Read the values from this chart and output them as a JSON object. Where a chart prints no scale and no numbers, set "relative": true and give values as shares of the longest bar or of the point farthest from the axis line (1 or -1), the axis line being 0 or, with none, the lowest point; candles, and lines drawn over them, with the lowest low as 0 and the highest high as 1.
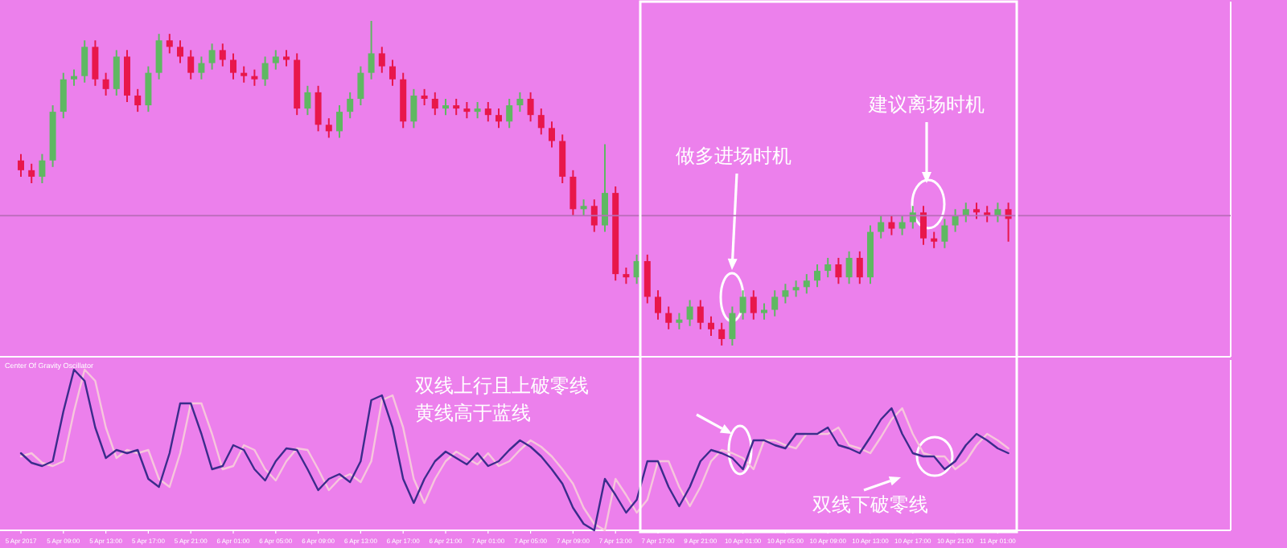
{
  "chart_data": [
    {
      "type": "candlestick",
      "relative": true,
      "categories": [
        null,
        null,
        null,
        null,
        null,
        null,
        null,
        null,
        null,
        null,
        null,
        null,
        null,
        null,
        null,
        null,
        null,
        null,
        null,
        null,
        null,
        null,
        null,
        null,
        null,
        null,
        null,
        null,
        null,
        null,
        null,
        null,
        null,
        null,
        null,
        null,
        null,
        null,
        null,
        null,
        null,
        null,
        null,
        null,
        null,
        null,
        null,
        null,
        null,
        null,
        null,
        null,
        null,
        null,
        null,
        null,
        null,
        null,
        null,
        null,
        null,
        null,
        null,
        null,
        null,
        null,
        null,
        null,
        null,
        null,
        null,
        null,
        null,
        null,
        null,
        null,
        null,
        null,
        null,
        null,
        null,
        null,
        null,
        null,
        null,
        null,
        null,
        null,
        null,
        null,
        null,
        null,
        null,
        null
      ],
      "ohlc": [
        [
          0.57,
          0.59,
          0.52,
          0.54
        ],
        [
          0.54,
          0.56,
          0.5,
          0.52
        ],
        [
          0.52,
          0.59,
          0.5,
          0.57
        ],
        [
          0.57,
          0.74,
          0.55,
          0.72
        ],
        [
          0.72,
          0.84,
          0.7,
          0.82
        ],
        [
          0.82,
          0.85,
          0.8,
          0.83
        ],
        [
          0.83,
          0.94,
          0.81,
          0.92
        ],
        [
          0.92,
          0.94,
          0.8,
          0.82
        ],
        [
          0.82,
          0.84,
          0.77,
          0.79
        ],
        [
          0.79,
          0.91,
          0.77,
          0.89
        ],
        [
          0.89,
          0.91,
          0.75,
          0.77
        ],
        [
          0.77,
          0.79,
          0.72,
          0.74
        ],
        [
          0.74,
          0.86,
          0.72,
          0.84
        ],
        [
          0.84,
          0.96,
          0.82,
          0.94
        ],
        [
          0.94,
          0.96,
          0.9,
          0.92
        ],
        [
          0.92,
          0.94,
          0.87,
          0.89
        ],
        [
          0.89,
          0.91,
          0.82,
          0.84
        ],
        [
          0.84,
          0.89,
          0.82,
          0.87
        ],
        [
          0.87,
          0.93,
          0.85,
          0.91
        ],
        [
          0.91,
          0.93,
          0.86,
          0.88
        ],
        [
          0.88,
          0.9,
          0.82,
          0.84
        ],
        [
          0.84,
          0.86,
          0.81,
          0.83
        ],
        [
          0.83,
          0.85,
          0.8,
          0.82
        ],
        [
          0.82,
          0.89,
          0.8,
          0.87
        ],
        [
          0.87,
          0.91,
          0.85,
          0.89
        ],
        [
          0.89,
          0.91,
          0.86,
          0.88
        ],
        [
          0.88,
          0.9,
          0.71,
          0.73
        ],
        [
          0.73,
          0.8,
          0.71,
          0.78
        ],
        [
          0.78,
          0.8,
          0.66,
          0.68
        ],
        [
          0.68,
          0.7,
          0.64,
          0.66
        ],
        [
          0.66,
          0.74,
          0.64,
          0.72
        ],
        [
          0.72,
          0.78,
          0.7,
          0.76
        ],
        [
          0.76,
          0.86,
          0.74,
          0.84
        ],
        [
          0.84,
          1.0,
          0.82,
          0.9
        ],
        [
          0.9,
          0.92,
          0.84,
          0.86
        ],
        [
          0.86,
          0.88,
          0.8,
          0.82
        ],
        [
          0.82,
          0.84,
          0.67,
          0.69
        ],
        [
          0.69,
          0.79,
          0.67,
          0.77
        ],
        [
          0.77,
          0.79,
          0.74,
          0.76
        ],
        [
          0.76,
          0.78,
          0.71,
          0.73
        ],
        [
          0.73,
          0.76,
          0.71,
          0.74
        ],
        [
          0.74,
          0.76,
          0.71,
          0.73
        ],
        [
          0.73,
          0.75,
          0.7,
          0.72
        ],
        [
          0.72,
          0.75,
          0.7,
          0.73
        ],
        [
          0.73,
          0.75,
          0.69,
          0.71
        ],
        [
          0.71,
          0.73,
          0.67,
          0.69
        ],
        [
          0.69,
          0.76,
          0.67,
          0.74
        ],
        [
          0.74,
          0.78,
          0.72,
          0.76
        ],
        [
          0.76,
          0.78,
          0.69,
          0.71
        ],
        [
          0.71,
          0.73,
          0.65,
          0.67
        ],
        [
          0.67,
          0.69,
          0.61,
          0.63
        ],
        [
          0.63,
          0.65,
          0.5,
          0.52
        ],
        [
          0.52,
          0.54,
          0.4,
          0.42
        ],
        [
          0.42,
          0.45,
          0.4,
          0.43
        ],
        [
          0.43,
          0.45,
          0.35,
          0.37
        ],
        [
          0.37,
          0.62,
          0.35,
          0.47
        ],
        [
          0.47,
          0.49,
          0.2,
          0.22
        ],
        [
          0.22,
          0.24,
          0.19,
          0.21
        ],
        [
          0.21,
          0.28,
          0.19,
          0.26
        ],
        [
          0.26,
          0.28,
          0.13,
          0.15
        ],
        [
          0.15,
          0.17,
          0.08,
          0.1
        ],
        [
          0.1,
          0.12,
          0.05,
          0.07
        ],
        [
          0.07,
          0.1,
          0.05,
          0.08
        ],
        [
          0.08,
          0.14,
          0.06,
          0.12
        ],
        [
          0.12,
          0.14,
          0.05,
          0.07
        ],
        [
          0.07,
          0.09,
          0.03,
          0.05
        ],
        [
          0.05,
          0.07,
          0.0,
          0.02
        ],
        [
          0.02,
          0.12,
          0.0,
          0.1
        ],
        [
          0.1,
          0.17,
          0.08,
          0.15
        ],
        [
          0.15,
          0.17,
          0.08,
          0.1
        ],
        [
          0.1,
          0.13,
          0.08,
          0.11
        ],
        [
          0.11,
          0.17,
          0.09,
          0.15
        ],
        [
          0.15,
          0.19,
          0.13,
          0.17
        ],
        [
          0.17,
          0.2,
          0.15,
          0.18
        ],
        [
          0.18,
          0.22,
          0.16,
          0.2
        ],
        [
          0.2,
          0.25,
          0.18,
          0.23
        ],
        [
          0.23,
          0.27,
          0.21,
          0.25
        ],
        [
          0.25,
          0.27,
          0.19,
          0.21
        ],
        [
          0.21,
          0.29,
          0.19,
          0.27
        ],
        [
          0.27,
          0.29,
          0.19,
          0.21
        ],
        [
          0.21,
          0.37,
          0.19,
          0.35
        ],
        [
          0.35,
          0.4,
          0.33,
          0.38
        ],
        [
          0.38,
          0.4,
          0.34,
          0.36
        ],
        [
          0.36,
          0.4,
          0.34,
          0.38
        ],
        [
          0.38,
          0.43,
          0.36,
          0.41
        ],
        [
          0.41,
          0.43,
          0.31,
          0.33
        ],
        [
          0.33,
          0.35,
          0.3,
          0.32
        ],
        [
          0.32,
          0.39,
          0.3,
          0.37
        ],
        [
          0.37,
          0.42,
          0.35,
          0.4
        ],
        [
          0.4,
          0.44,
          0.38,
          0.42
        ],
        [
          0.42,
          0.44,
          0.39,
          0.41
        ],
        [
          0.41,
          0.43,
          0.38,
          0.4
        ],
        [
          0.4,
          0.44,
          0.38,
          0.42
        ],
        [
          0.42,
          0.44,
          0.32,
          0.39
        ]
      ],
      "ref_lines": [
        {
          "axis": "y",
          "value": 0.4,
          "color": "#b86cb8"
        }
      ],
      "annotations": [
        "做多进场时机",
        "建议离场时机"
      ]
    },
    {
      "type": "line",
      "relative": true,
      "tick_labels": "x",
      "title": "Center Of Gravity Oscillator",
      "categories": [
        "5 Apr 2017",
        null,
        null,
        null,
        "5 Apr 09:00",
        null,
        null,
        null,
        "5 Apr 13:00",
        null,
        null,
        null,
        "5 Apr 17:00",
        null,
        null,
        null,
        "5 Apr 21:00",
        null,
        null,
        null,
        "6 Apr 01:00",
        null,
        null,
        null,
        "6 Apr 05:00",
        null,
        null,
        null,
        "6 Apr 09:00",
        null,
        null,
        null,
        "6 Apr 13:00",
        null,
        null,
        null,
        "6 Apr 17:00",
        null,
        null,
        null,
        "6 Apr 21:00",
        null,
        null,
        null,
        "7 Apr 01:00",
        null,
        null,
        null,
        "7 Apr 05:00",
        null,
        null,
        null,
        "7 Apr 09:00",
        null,
        null,
        null,
        "7 Apr 13:00",
        null,
        null,
        null,
        "7 Apr 17:00",
        null,
        null,
        null,
        "9 Apr 21:00",
        null,
        null,
        null,
        "10 Apr 01:00",
        null,
        null,
        null,
        "10 Apr 05:00",
        null,
        null,
        null,
        "10 Apr 09:00",
        null,
        null,
        null,
        "10 Apr 13:00",
        null,
        null,
        null,
        "10 Apr 17:00",
        null,
        null,
        null,
        "10 Apr 21:00",
        null,
        null,
        null,
        "11 Apr 01:00",
        null
      ],
      "series": [
        {
          "color": "#f6c6dc",
          "values": [
            0.46,
            0.48,
            0.42,
            0.4,
            0.43,
            0.74,
            1.0,
            0.93,
            0.64,
            0.45,
            0.5,
            0.48,
            0.5,
            0.32,
            0.27,
            0.48,
            0.79,
            0.79,
            0.6,
            0.38,
            0.4,
            0.53,
            0.5,
            0.38,
            0.31,
            0.43,
            0.51,
            0.5,
            0.38,
            0.25,
            0.32,
            0.35,
            0.3,
            0.43,
            0.81,
            0.84,
            0.64,
            0.32,
            0.17,
            0.32,
            0.43,
            0.49,
            0.45,
            0.41,
            0.48,
            0.4,
            0.43,
            0.5,
            0.56,
            0.52,
            0.46,
            0.38,
            0.29,
            0.14,
            0.04,
            0.0,
            0.32,
            0.22,
            0.11,
            0.19,
            0.43,
            0.43,
            0.27,
            0.15,
            0.27,
            0.43,
            0.5,
            0.48,
            0.45,
            0.38,
            0.56,
            0.56,
            0.53,
            0.51,
            0.6,
            0.6,
            0.6,
            0.64,
            0.53,
            0.51,
            0.48,
            0.58,
            0.69,
            0.76,
            0.6,
            0.48,
            0.46,
            0.46,
            0.38,
            0.43,
            0.53,
            0.6,
            0.56,
            0.51
          ]
        },
        {
          "color": "#3b2c8c",
          "values": [
            0.48,
            0.42,
            0.4,
            0.43,
            0.74,
            1.0,
            0.93,
            0.64,
            0.45,
            0.5,
            0.48,
            0.5,
            0.32,
            0.27,
            0.48,
            0.79,
            0.79,
            0.6,
            0.38,
            0.4,
            0.53,
            0.5,
            0.38,
            0.31,
            0.43,
            0.51,
            0.5,
            0.38,
            0.25,
            0.32,
            0.35,
            0.3,
            0.43,
            0.81,
            0.84,
            0.64,
            0.32,
            0.17,
            0.32,
            0.43,
            0.49,
            0.45,
            0.41,
            0.48,
            0.4,
            0.43,
            0.5,
            0.56,
            0.52,
            0.46,
            0.38,
            0.29,
            0.14,
            0.04,
            0.0,
            0.32,
            0.22,
            0.11,
            0.19,
            0.43,
            0.43,
            0.27,
            0.15,
            0.27,
            0.43,
            0.5,
            0.48,
            0.45,
            0.38,
            0.56,
            0.56,
            0.53,
            0.51,
            0.6,
            0.6,
            0.6,
            0.64,
            0.53,
            0.51,
            0.48,
            0.58,
            0.69,
            0.76,
            0.6,
            0.48,
            0.46,
            0.46,
            0.38,
            0.43,
            0.53,
            0.6,
            0.56,
            0.51,
            0.48
          ]
        }
      ],
      "annotations": [
        "双线上行且上破零线",
        "黄线高于蓝线",
        "双线下破零线"
      ]
    }
  ]
}
